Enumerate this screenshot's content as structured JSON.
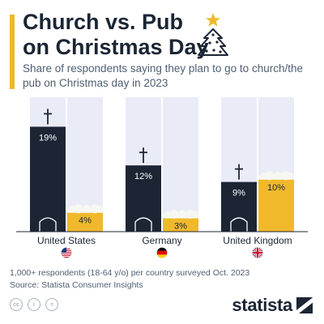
{
  "header": {
    "title": "Church vs. Pub on Christmas Day",
    "subtitle": "Share of respondents saying they plan to go to church/the pub on Christmas day in 2023"
  },
  "chart_data": {
    "type": "bar",
    "categories": [
      "United States",
      "Germany",
      "United Kingdom"
    ],
    "series": [
      {
        "values": [
          19,
          12,
          9
        ],
        "color": "#1b2534"
      },
      {
        "values": [
          4,
          3,
          10
        ],
        "color": "#f0b92c"
      }
    ],
    "value_labels": {
      "church": [
        "19%",
        "12%",
        "9%"
      ],
      "pub": [
        "4%",
        "3%",
        "10%"
      ]
    },
    "flags": [
      "us-flag-icon",
      "germany-flag-icon",
      "uk-flag-icon"
    ],
    "ylim": [
      0,
      22
    ],
    "grid": false,
    "background_panel_color": "#e9ecf7"
  },
  "footer": {
    "note": "1,000+ respondents (18-64 y/o) per country surveyed Oct. 2023",
    "source": "Source: Statista Consumer Insights",
    "brand": "statista"
  },
  "icons": [
    "christmas-tree-icon",
    "cross-icon",
    "church-door-icon",
    "beer-foam-icon",
    "creative-commons-icon",
    "attribution-icon",
    "equals-icon",
    "statista-logo-icon"
  ]
}
